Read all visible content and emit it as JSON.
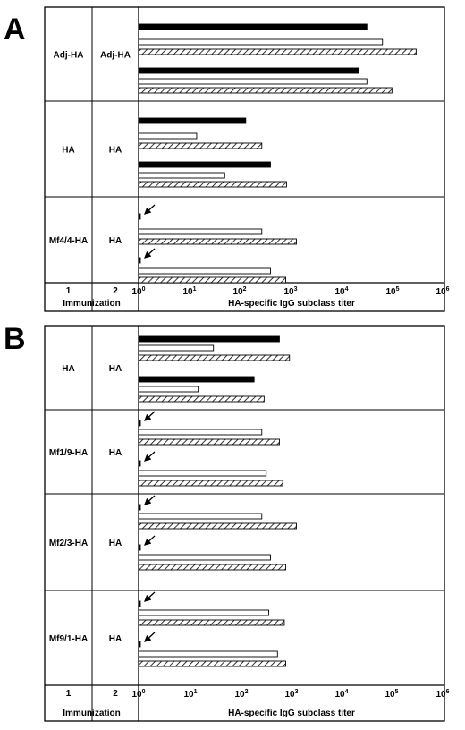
{
  "panels": [
    {
      "letter": "A",
      "footer": {
        "col1_number": "1",
        "col2_number": "2",
        "immunization_label": "Immunization",
        "axis_title": "HA-specific IgG subclass titer"
      },
      "tick_labels": [
        {
          "base": "10",
          "exp": "0"
        },
        {
          "base": "10",
          "exp": "1"
        },
        {
          "base": "10",
          "exp": "2"
        },
        {
          "base": "10",
          "exp": "3"
        },
        {
          "base": "10",
          "exp": "4"
        },
        {
          "base": "10",
          "exp": "5"
        },
        {
          "base": "10",
          "exp": "6"
        }
      ]
    },
    {
      "letter": "B",
      "footer": {
        "col1_number": "1",
        "col2_number": "2",
        "immunization_label": "Immunization",
        "axis_title": "HA-specific IgG subclass titer"
      },
      "tick_labels": [
        {
          "base": "10",
          "exp": "0"
        },
        {
          "base": "10",
          "exp": "1"
        },
        {
          "base": "10",
          "exp": "2"
        },
        {
          "base": "10",
          "exp": "3"
        },
        {
          "base": "10",
          "exp": "4"
        },
        {
          "base": "10",
          "exp": "5"
        },
        {
          "base": "10",
          "exp": "6"
        }
      ]
    }
  ],
  "chart_data": [
    {
      "type": "bar",
      "orientation": "horizontal",
      "xscale": "log",
      "xlim": [
        1,
        1000000
      ],
      "xlabel": "HA-specific IgG subclass titer",
      "bar_styles": [
        "solid-black",
        "open",
        "hatched"
      ],
      "groups": [
        {
          "immunization_1": "Adj-HA",
          "immunization_2": "Adj-HA",
          "sets": [
            [
              32000,
              65000,
              300000
            ],
            [
              22000,
              32000,
              100000
            ]
          ],
          "arrows": [
            false,
            false
          ]
        },
        {
          "immunization_1": "HA",
          "immunization_2": "HA",
          "sets": [
            [
              130,
              14,
              270
            ],
            [
              400,
              50,
              830
            ]
          ],
          "arrows": [
            false,
            false
          ]
        },
        {
          "immunization_1": "Mf4/4-HA",
          "immunization_2": "HA",
          "sets": [
            [
              1.05,
              270,
              1300
            ],
            [
              1.05,
              400,
              800
            ]
          ],
          "arrows": [
            true,
            true
          ]
        }
      ]
    },
    {
      "type": "bar",
      "orientation": "horizontal",
      "xscale": "log",
      "xlim": [
        1,
        1000000
      ],
      "xlabel": "HA-specific IgG subclass titer",
      "bar_styles": [
        "solid-black",
        "open",
        "hatched"
      ],
      "groups": [
        {
          "immunization_1": "HA",
          "immunization_2": "HA",
          "sets": [
            [
              600,
              30,
              950
            ],
            [
              190,
              15,
              300
            ]
          ],
          "arrows": [
            false,
            false
          ]
        },
        {
          "immunization_1": "Mf1/9-HA",
          "immunization_2": "HA",
          "sets": [
            [
              1.05,
              270,
              600
            ],
            [
              1.05,
              330,
              700
            ]
          ],
          "arrows": [
            true,
            true
          ]
        },
        {
          "immunization_1": "Mf2/3-HA",
          "immunization_2": "HA",
          "sets": [
            [
              1.05,
              270,
              1300
            ],
            [
              1.05,
              400,
              800
            ]
          ],
          "arrows": [
            true,
            true
          ]
        },
        {
          "immunization_1": "Mf9/1-HA",
          "immunization_2": "HA",
          "sets": [
            [
              1.05,
              370,
              750
            ],
            [
              1.05,
              550,
              800
            ]
          ],
          "arrows": [
            true,
            true
          ]
        }
      ]
    }
  ]
}
